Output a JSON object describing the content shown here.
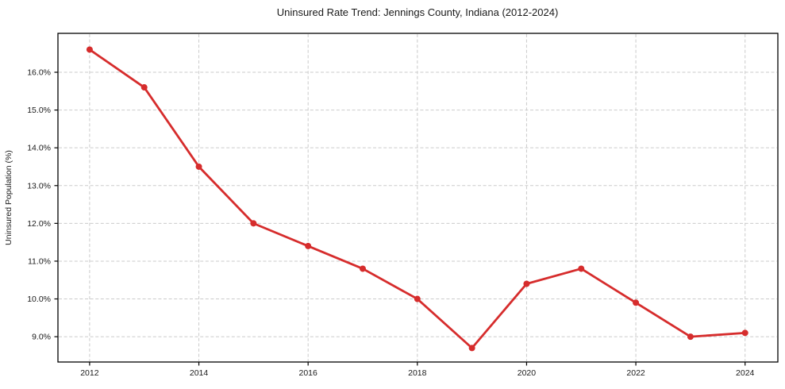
{
  "chart_data": {
    "type": "line",
    "title": "Uninsured Rate Trend: Jennings County, Indiana (2012-2024)",
    "xlabel": "",
    "ylabel": "Uninsured Population (%)",
    "series": [
      {
        "name": "Uninsured Rate",
        "x": [
          2012,
          2013,
          2014,
          2015,
          2016,
          2017,
          2018,
          2019,
          2020,
          2021,
          2022,
          2023,
          2024
        ],
        "values": [
          16.6,
          15.6,
          13.5,
          12.0,
          11.4,
          10.8,
          10.0,
          8.7,
          10.4,
          10.8,
          9.9,
          9.0,
          9.1
        ]
      }
    ],
    "xticks": [
      2012,
      2014,
      2016,
      2018,
      2020,
      2022,
      2024
    ],
    "xtick_labels": [
      "2012",
      "2014",
      "2016",
      "2018",
      "2020",
      "2022",
      "2024"
    ],
    "yticks": [
      9,
      10,
      11,
      12,
      13,
      14,
      15,
      16
    ],
    "ytick_labels": [
      "9.0%",
      "10.0%",
      "11.0%",
      "12.0%",
      "13.0%",
      "14.0%",
      "15.0%",
      "16.0%"
    ],
    "xlim": [
      2011.42,
      2024.6
    ],
    "ylim": [
      8.33,
      17.03
    ],
    "grid": true,
    "grid_style": "dashed",
    "legend": false,
    "colors": {
      "line": "#d62c2c",
      "marker": "#d62c2c",
      "grid": "#cbcbcb",
      "frame": "#000000",
      "text": "#1a1a1a",
      "background": "#ffffff"
    },
    "marker": "circle",
    "marker_radius": 4,
    "line_width": 2.8
  }
}
